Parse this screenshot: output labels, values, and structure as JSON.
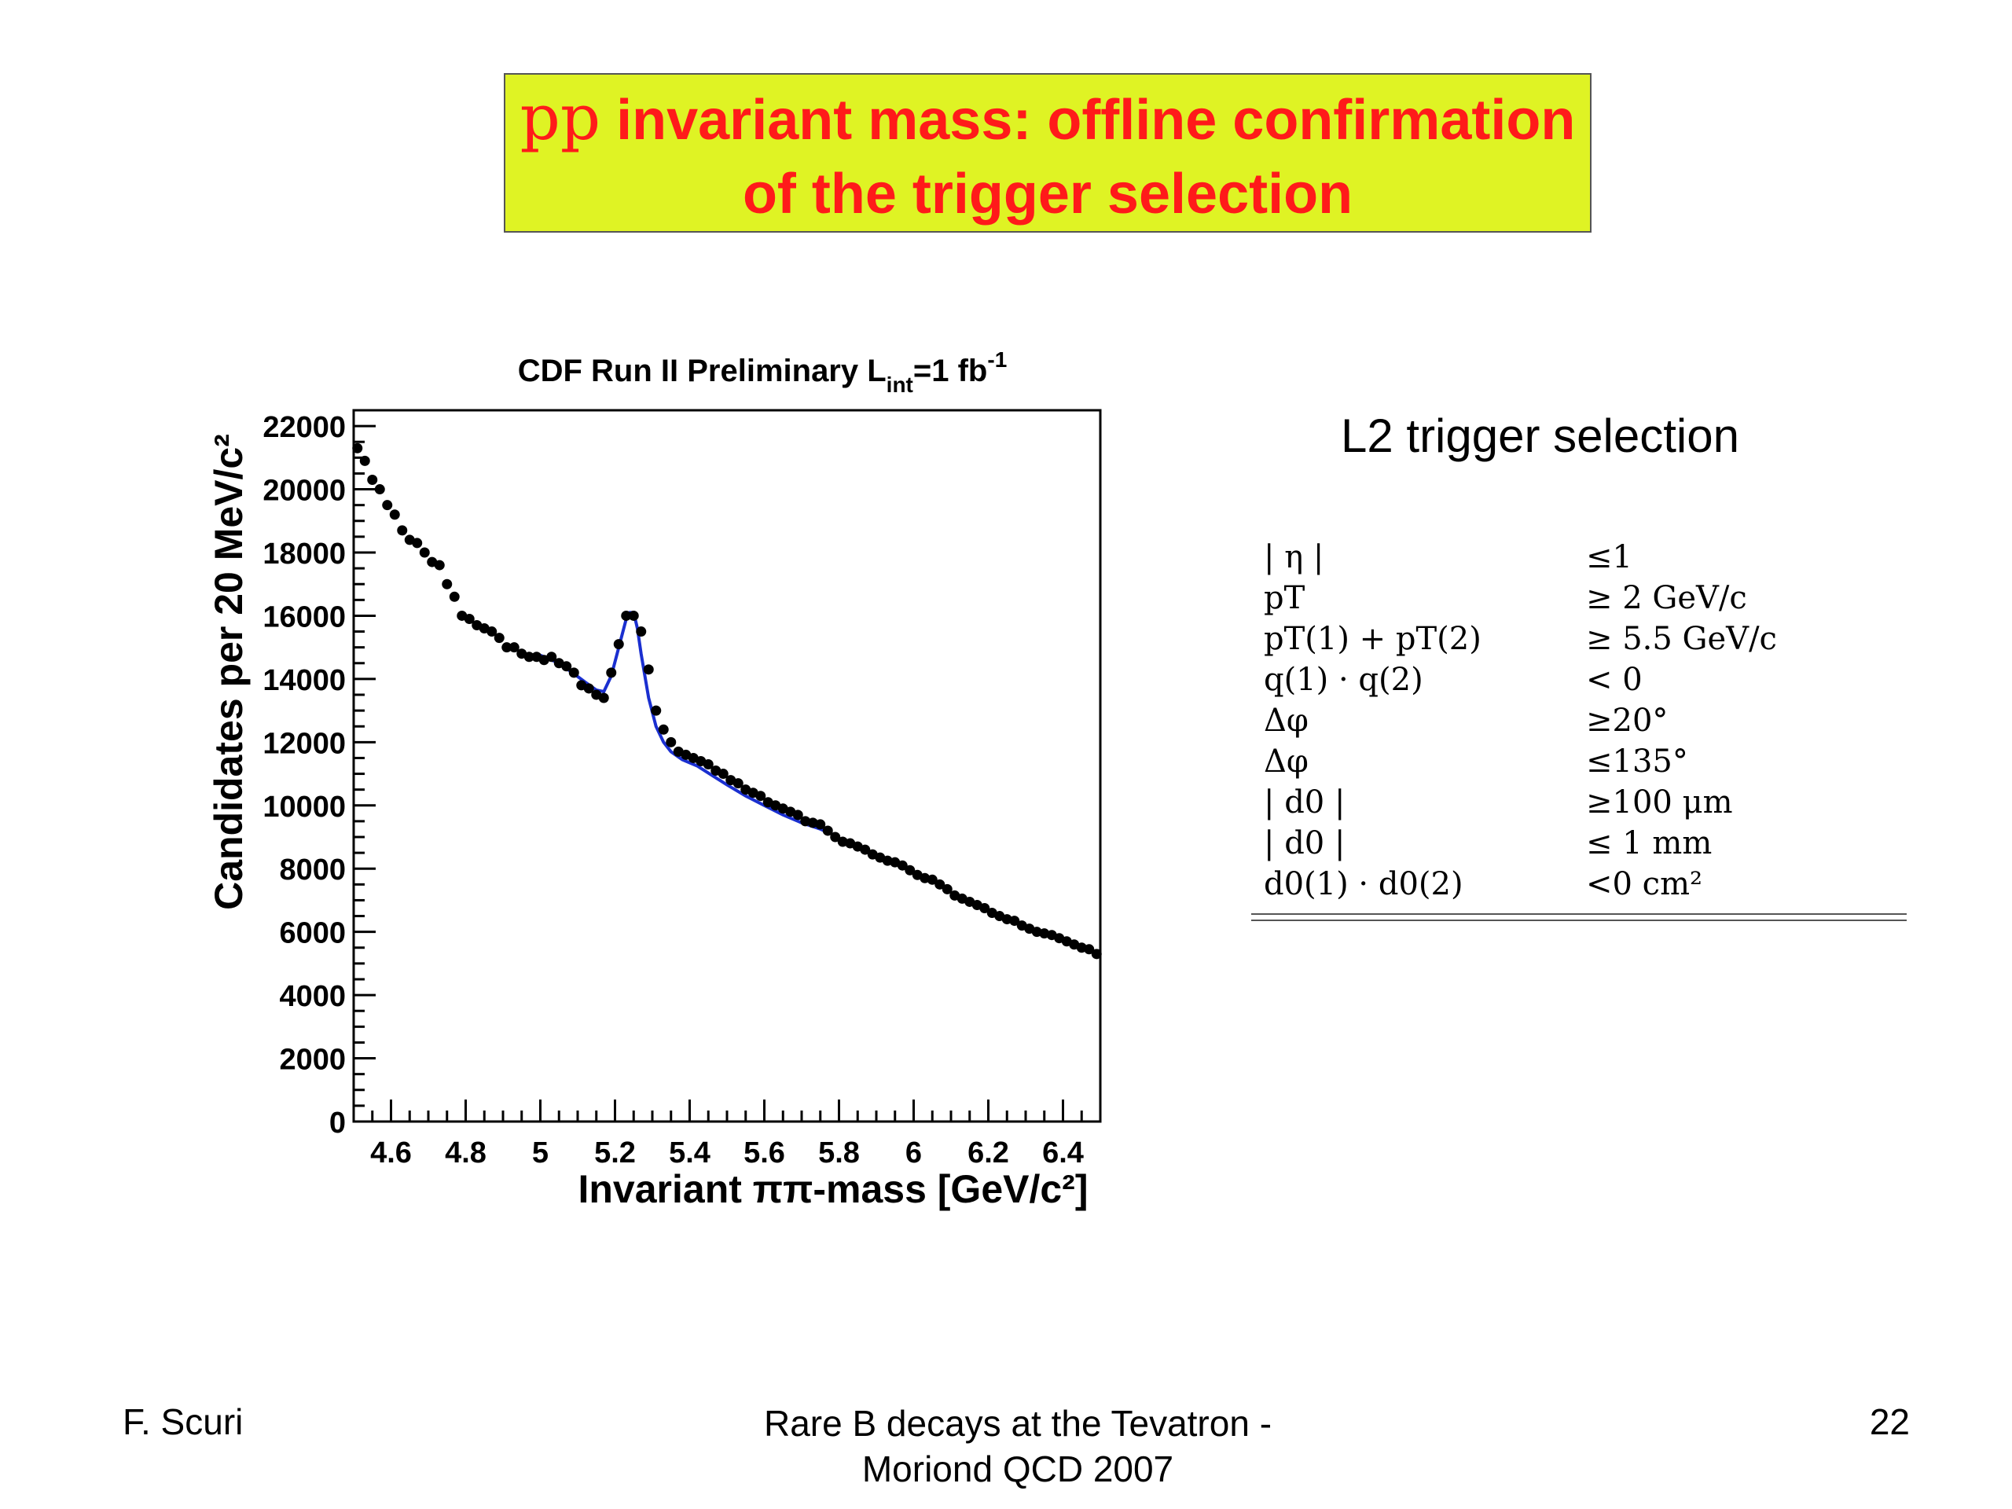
{
  "slide": {
    "title_symbol": "pp",
    "title_line1": "invariant mass: offline confirmation",
    "title_line2": "of the trigger selection",
    "panel_heading": "L2 trigger selection",
    "cuts": [
      {
        "variable": "| η |",
        "value": "≤1"
      },
      {
        "variable": "pT",
        "value": "≥ 2 GeV/c"
      },
      {
        "variable": "pT(1) + pT(2)",
        "value": "≥ 5.5 GeV/c"
      },
      {
        "variable": "q(1) · q(2)",
        "value": "< 0"
      },
      {
        "variable": "Δφ",
        "value": "≥20°"
      },
      {
        "variable": "Δφ",
        "value": "≤135°"
      },
      {
        "variable": "| d0 |",
        "value": "≥100 μm"
      },
      {
        "variable": "| d0 |",
        "value": "≤ 1 mm"
      },
      {
        "variable": "d0(1) · d0(2)",
        "value": "<0 cm²"
      }
    ],
    "footer_left": "F. Scuri",
    "footer_center_line1": "Rare B decays at the Tevatron -",
    "footer_center_line2": "Moriond QCD 2007",
    "page_number": "22"
  },
  "chart_data": {
    "type": "scatter",
    "title": "CDF Run II  Preliminary L",
    "title_sub": "int",
    "title_rest": "=1 fb",
    "title_sup": "-1",
    "xlabel": "Invariant ππ-mass [GeV/c²]",
    "ylabel": "Candidates per 20 MeV/c²",
    "xlim": [
      4.5,
      6.5
    ],
    "ylim": [
      0,
      22500
    ],
    "x_ticks": [
      4.6,
      4.8,
      5,
      5.2,
      5.4,
      5.6,
      5.8,
      6,
      6.2,
      6.4
    ],
    "x_tick_labels": [
      "4.6",
      "4.8",
      "5",
      "5.2",
      "5.4",
      "5.6",
      "5.8",
      "6",
      "6.2",
      "6.4"
    ],
    "y_ticks": [
      0,
      2000,
      4000,
      6000,
      8000,
      10000,
      12000,
      14000,
      16000,
      18000,
      20000,
      22000
    ],
    "y_tick_labels": [
      "0",
      "2000",
      "4000",
      "6000",
      "8000",
      "10000",
      "12000",
      "14000",
      "16000",
      "18000",
      "20000",
      "22000"
    ],
    "grid": false,
    "marker_color": "#000000",
    "fit_color": "#1a2fd0",
    "series": [
      {
        "x": [
          4.51,
          4.53,
          4.55,
          4.57,
          4.59,
          4.61,
          4.63,
          4.65,
          4.67,
          4.69,
          4.71,
          4.73,
          4.75,
          4.77,
          4.79,
          4.81,
          4.83,
          4.85,
          4.87,
          4.89,
          4.91,
          4.93,
          4.95,
          4.97,
          4.99,
          5.01,
          5.03,
          5.05,
          5.07,
          5.09,
          5.11,
          5.13,
          5.15,
          5.17,
          5.19,
          5.21,
          5.23,
          5.25,
          5.27,
          5.29,
          5.31,
          5.33,
          5.35,
          5.37,
          5.39,
          5.41,
          5.43,
          5.45,
          5.47,
          5.49,
          5.51,
          5.53,
          5.55,
          5.57,
          5.59,
          5.61,
          5.63,
          5.65,
          5.67,
          5.69,
          5.71,
          5.73,
          5.75,
          5.77,
          5.79,
          5.81,
          5.83,
          5.85,
          5.87,
          5.89,
          5.91,
          5.93,
          5.95,
          5.97,
          5.99,
          6.01,
          6.03,
          6.05,
          6.07,
          6.09,
          6.11,
          6.13,
          6.15,
          6.17,
          6.19,
          6.21,
          6.23,
          6.25,
          6.27,
          6.29,
          6.31,
          6.33,
          6.35,
          6.37,
          6.39,
          6.41,
          6.43,
          6.45,
          6.47,
          6.49
        ],
        "y": [
          21300,
          20900,
          20300,
          20000,
          19500,
          19200,
          18700,
          18400,
          18300,
          18000,
          17700,
          17600,
          17000,
          16600,
          16000,
          15900,
          15700,
          15600,
          15500,
          15300,
          15000,
          15000,
          14800,
          14700,
          14700,
          14600,
          14700,
          14500,
          14400,
          14200,
          13800,
          13700,
          13500,
          13400,
          14200,
          15100,
          16000,
          16000,
          15500,
          14300,
          13000,
          12400,
          12000,
          11700,
          11600,
          11500,
          11400,
          11300,
          11100,
          11000,
          10800,
          10700,
          10500,
          10400,
          10300,
          10100,
          10000,
          9900,
          9800,
          9700,
          9500,
          9450,
          9400,
          9200,
          9000,
          8850,
          8800,
          8700,
          8600,
          8450,
          8350,
          8250,
          8200,
          8100,
          7950,
          7800,
          7700,
          7650,
          7500,
          7350,
          7150,
          7050,
          6950,
          6850,
          6750,
          6600,
          6500,
          6400,
          6350,
          6200,
          6100,
          6000,
          5950,
          5900,
          5800,
          5700,
          5600,
          5500,
          5450,
          5300
        ]
      }
    ],
    "fit": {
      "x": [
        5.0,
        5.04,
        5.08,
        5.12,
        5.15,
        5.17,
        5.19,
        5.21,
        5.23,
        5.24,
        5.25,
        5.26,
        5.27,
        5.29,
        5.31,
        5.33,
        5.35,
        5.38,
        5.42,
        5.46,
        5.5,
        5.55,
        5.6,
        5.65,
        5.7,
        5.75,
        5.8
      ],
      "y": [
        14750,
        14550,
        14250,
        13900,
        13650,
        13600,
        14100,
        15000,
        15900,
        16100,
        16100,
        15600,
        14800,
        13400,
        12500,
        12000,
        11700,
        11450,
        11250,
        10950,
        10650,
        10300,
        10000,
        9700,
        9450,
        9250,
        9000
      ]
    }
  }
}
